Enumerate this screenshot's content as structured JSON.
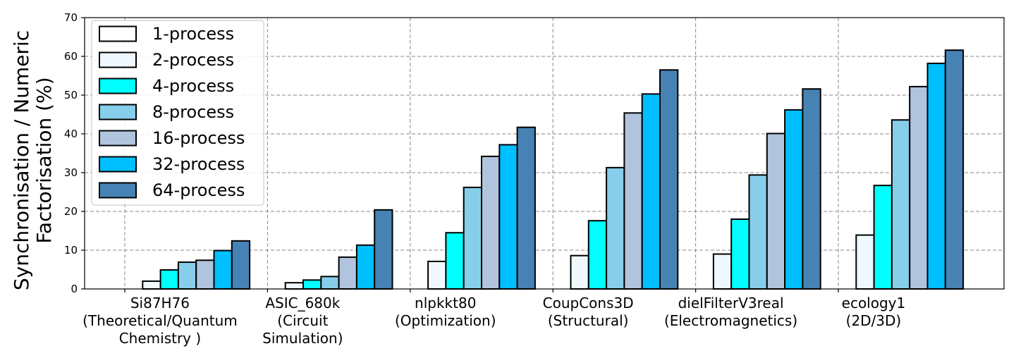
{
  "chart_data": {
    "type": "bar",
    "ylabel_lines": [
      "Synchronisation / Numeric",
      "Factorisation (%)"
    ],
    "ylim": [
      0,
      70
    ],
    "yticks": [
      0,
      10,
      20,
      30,
      40,
      50,
      60,
      70
    ],
    "grid": true,
    "legend_position": "top-left",
    "categories": [
      [
        "Si87H76",
        "(Theoretical/Quantum",
        "Chemistry )"
      ],
      [
        "ASIC_680k",
        "(Circuit",
        "Simulation)"
      ],
      [
        "nlpkkt80",
        "(Optimization)"
      ],
      [
        "CoupCons3D",
        "(Structural)"
      ],
      [
        "dielFilterV3real",
        "(Electromagnetics)"
      ],
      [
        "ecology1",
        "(2D/3D)"
      ]
    ],
    "series": [
      {
        "name": "1-process",
        "color": "#ffffff",
        "values": [
          0,
          0,
          0,
          0,
          0,
          0
        ]
      },
      {
        "name": "2-process",
        "color": "#f0f8ff",
        "values": [
          2.0,
          1.6,
          7.1,
          8.6,
          9.0,
          13.9
        ]
      },
      {
        "name": "4-process",
        "color": "#00ffff",
        "values": [
          4.9,
          2.3,
          14.5,
          17.6,
          18.0,
          26.7
        ]
      },
      {
        "name": "8-process",
        "color": "#87ceeb",
        "values": [
          6.9,
          3.2,
          26.2,
          31.3,
          29.4,
          43.6
        ]
      },
      {
        "name": "16-process",
        "color": "#b0c4de",
        "values": [
          7.4,
          8.2,
          34.2,
          45.4,
          40.1,
          52.2
        ]
      },
      {
        "name": "32-process",
        "color": "#00bfff",
        "values": [
          9.9,
          11.3,
          37.2,
          50.3,
          46.2,
          58.2
        ]
      },
      {
        "name": "64-process",
        "color": "#4682b4",
        "values": [
          12.4,
          20.4,
          41.7,
          56.5,
          51.6,
          61.6
        ]
      }
    ]
  }
}
